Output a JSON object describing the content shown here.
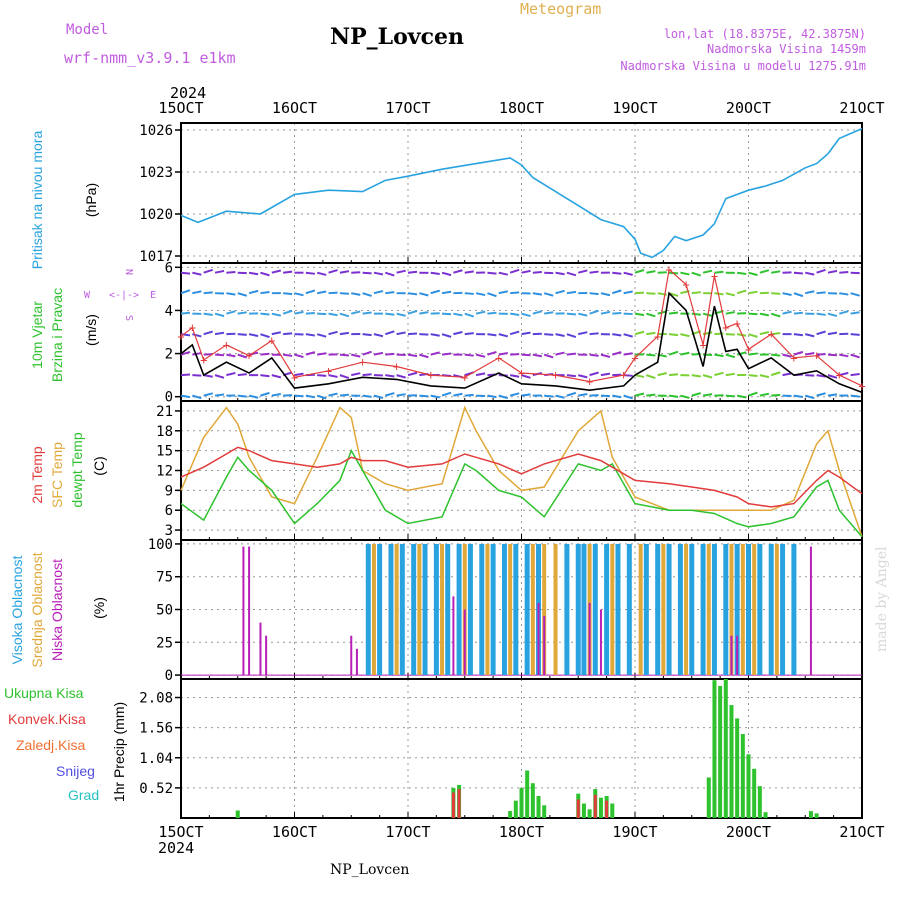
{
  "header": {
    "model_label": "Model",
    "model_name": "wrf-nmm_v3.9.1  e1km",
    "title": "NP_Lovcen",
    "meteogram": "Meteogram",
    "lonlat": "lon,lat (18.8375E, 42.3875N)",
    "height1": "Nadmorska Visina 1459m",
    "height2": "Nadmorska Visina u modelu 1275.91m",
    "year": "2024",
    "footer": "NP_Lovcen",
    "credit": "made by Angel"
  },
  "time_axis": {
    "ticks": [
      "15OCT",
      "16OCT",
      "17OCT",
      "18OCT",
      "19OCT",
      "20OCT",
      "21OCT"
    ],
    "start_day": 15,
    "end_day": 21
  },
  "panel_labels": {
    "pressure": [
      "Pritisak na nivou mora",
      "(hPa)"
    ],
    "wind": [
      "10m Vjetar",
      "Brzina i Pravac",
      "(m/s)"
    ],
    "compass": [
      "N",
      "W",
      "E",
      "S"
    ],
    "temp": [
      "2m Temp",
      "SFC Temp",
      "dewpt Temp",
      "(C)"
    ],
    "cloud": [
      "Visoka Oblacnost",
      "Srednja Oblacnost",
      "Niska Oblacnost",
      "(%)"
    ],
    "precip": [
      "Ukupna Kisa",
      "Konvek.Kisa",
      "Zaledj.Kisa",
      "Snijeg",
      "Grad",
      "1hr Precip (mm)"
    ]
  },
  "colors": {
    "pressure": "#29a3e0",
    "wind_speed": "#000000",
    "gust": "#e23b3b",
    "t2m": "#e23b3b",
    "sfc": "#e0a838",
    "dewpt": "#2ec22e",
    "cloud_high": "#29a3e0",
    "cloud_mid": "#e0a838",
    "cloud_low": "#b81fb8",
    "rain_total": "#2ec22e",
    "rain_conv": "#e23b3b",
    "rain_frz": "#f07030",
    "snow": "#5050e0",
    "hail": "#29c0c0",
    "label_purple": "#c05ce0"
  },
  "chart_data": [
    {
      "type": "line",
      "name": "pressure",
      "ylim": [
        1016.5,
        1026.5
      ],
      "yticks": [
        1017,
        1020,
        1023,
        1026
      ],
      "x": [
        15.0,
        15.15,
        15.4,
        15.7,
        16.0,
        16.3,
        16.6,
        16.8,
        17.0,
        17.3,
        17.6,
        17.9,
        18.0,
        18.1,
        18.3,
        18.5,
        18.7,
        18.9,
        19.0,
        19.05,
        19.15,
        19.25,
        19.35,
        19.45,
        19.6,
        19.7,
        19.8,
        20.0,
        20.15,
        20.3,
        20.5,
        20.6,
        20.7,
        20.8,
        21.0
      ],
      "y": [
        1019.9,
        1019.4,
        1020.2,
        1020.0,
        1021.4,
        1021.7,
        1021.6,
        1022.4,
        1022.7,
        1023.2,
        1023.6,
        1024.0,
        1023.5,
        1022.6,
        1021.6,
        1020.6,
        1019.6,
        1019.1,
        1018.2,
        1017.2,
        1016.9,
        1017.4,
        1018.4,
        1018.1,
        1018.5,
        1019.3,
        1021.1,
        1021.7,
        1022.0,
        1022.4,
        1023.3,
        1023.6,
        1024.3,
        1025.4,
        1026.1
      ]
    },
    {
      "type": "line",
      "name": "wind",
      "ylim": [
        -0.2,
        6.2
      ],
      "yticks": [
        0,
        2,
        4,
        6
      ],
      "x": [
        15.0,
        15.1,
        15.2,
        15.4,
        15.6,
        15.8,
        16.0,
        16.3,
        16.6,
        16.9,
        17.2,
        17.5,
        17.8,
        18.0,
        18.3,
        18.6,
        18.9,
        19.0,
        19.2,
        19.3,
        19.45,
        19.6,
        19.7,
        19.8,
        19.9,
        20.0,
        20.2,
        20.4,
        20.6,
        20.8,
        21.0
      ],
      "y": [
        2.0,
        2.4,
        1.0,
        1.6,
        1.1,
        1.8,
        0.4,
        0.6,
        0.9,
        0.8,
        0.5,
        0.4,
        1.1,
        0.6,
        0.5,
        0.3,
        0.5,
        1.0,
        1.6,
        4.8,
        4.0,
        1.4,
        4.2,
        2.1,
        2.2,
        1.3,
        1.8,
        1.0,
        1.2,
        0.6,
        0.2
      ],
      "gust": [
        2.8,
        3.2,
        1.7,
        2.4,
        1.9,
        2.6,
        0.9,
        1.2,
        1.6,
        1.4,
        1.0,
        0.9,
        1.8,
        1.1,
        1.0,
        0.7,
        1.0,
        1.8,
        2.8,
        5.9,
        5.2,
        2.4,
        5.6,
        3.2,
        3.4,
        2.2,
        2.9,
        1.8,
        1.9,
        1.0,
        0.5
      ]
    },
    {
      "type": "line",
      "name": "temperature",
      "ylim": [
        1.5,
        22.5
      ],
      "yticks": [
        3,
        6,
        9,
        12,
        15,
        18,
        21
      ],
      "x": [
        15.0,
        15.2,
        15.4,
        15.5,
        15.6,
        15.8,
        16.0,
        16.2,
        16.4,
        16.5,
        16.6,
        16.8,
        17.0,
        17.3,
        17.5,
        17.6,
        17.8,
        18.0,
        18.2,
        18.5,
        18.7,
        18.8,
        19.0,
        19.3,
        19.5,
        19.7,
        19.9,
        20.0,
        20.2,
        20.4,
        20.6,
        20.7,
        20.8,
        21.0
      ],
      "t2m": [
        11,
        12.5,
        14.5,
        15.5,
        15,
        13.5,
        13,
        12.5,
        13,
        14,
        13.5,
        13.5,
        12.5,
        13,
        14.5,
        14,
        13,
        11.5,
        13,
        14.5,
        13.5,
        12.5,
        10.5,
        10,
        9.5,
        9,
        8,
        7,
        6.5,
        7,
        10.5,
        12,
        11,
        8.5
      ],
      "sfc": [
        9,
        17,
        21.5,
        19,
        14,
        8,
        7,
        14,
        21.5,
        20,
        12,
        10,
        9,
        10,
        21.5,
        18,
        12,
        9,
        9.5,
        18,
        21,
        14,
        8,
        6,
        6,
        6,
        6,
        6,
        6,
        7.5,
        16,
        18,
        12,
        2
      ],
      "dewpt": [
        7,
        4.5,
        11,
        14,
        12,
        9,
        4,
        7,
        10.5,
        15,
        12,
        6,
        4,
        5,
        13,
        12,
        9,
        8,
        5,
        13,
        12,
        13,
        7,
        6,
        6,
        5.5,
        4,
        3.5,
        4,
        5,
        9.5,
        10.5,
        6,
        2
      ]
    },
    {
      "type": "bar",
      "name": "cloud",
      "ylim": [
        -3,
        103
      ],
      "yticks": [
        0,
        25,
        50,
        75,
        100
      ],
      "series": [
        {
          "name": "Visoka Oblacnost",
          "x": [
            16.65,
            16.75,
            16.85,
            16.95,
            17.05,
            17.15,
            17.25,
            17.35,
            17.45,
            17.55,
            17.65,
            17.75,
            17.85,
            17.95,
            18.05,
            18.15,
            18.4,
            18.5,
            18.55,
            18.65,
            18.75,
            18.85,
            18.95,
            19.1,
            19.2,
            19.3,
            19.4,
            19.5,
            19.6,
            19.7,
            19.8,
            19.9,
            20.0,
            20.1,
            20.2,
            20.3,
            20.4
          ],
          "values": [
            100,
            100,
            100,
            100,
            100,
            100,
            100,
            100,
            100,
            100,
            100,
            100,
            100,
            100,
            100,
            100,
            100,
            100,
            100,
            100,
            100,
            100,
            100,
            100,
            100,
            100,
            100,
            100,
            100,
            100,
            100,
            100,
            100,
            100,
            100,
            100,
            100
          ]
        },
        {
          "name": "Srednja Oblacnost",
          "x": [
            16.7,
            16.9,
            17.1,
            17.3,
            17.5,
            17.7,
            17.9,
            18.1,
            18.2,
            18.3,
            18.6,
            18.8,
            19.05,
            19.25,
            19.45,
            19.65,
            19.85,
            19.95,
            20.05,
            20.25
          ],
          "values": [
            100,
            100,
            100,
            100,
            100,
            100,
            100,
            100,
            100,
            100,
            100,
            100,
            100,
            100,
            100,
            100,
            100,
            100,
            100,
            100
          ]
        },
        {
          "name": "Niska Oblacnost",
          "x": [
            15.55,
            15.6,
            15.7,
            15.75,
            16.5,
            16.55,
            17.4,
            17.5,
            18.15,
            18.2,
            18.6,
            18.7,
            19.85,
            19.9,
            20.55
          ],
          "values": [
            98,
            98,
            40,
            30,
            30,
            20,
            60,
            50,
            55,
            45,
            55,
            50,
            30,
            30,
            98
          ]
        }
      ]
    },
    {
      "type": "bar",
      "name": "precip",
      "ylim": [
        0,
        2.4
      ],
      "yticks": [
        0.52,
        1.04,
        1.56,
        2.08
      ],
      "series": [
        {
          "name": "Ukupna Kisa",
          "x": [
            15.5,
            17.4,
            17.45,
            17.9,
            17.95,
            18.0,
            18.05,
            18.1,
            18.15,
            18.2,
            18.5,
            18.55,
            18.6,
            18.65,
            18.7,
            18.75,
            18.8,
            19.65,
            19.7,
            19.75,
            19.8,
            19.85,
            19.9,
            19.95,
            20.0,
            20.05,
            20.1,
            20.15,
            20.55,
            20.6
          ],
          "values": [
            0.13,
            0.52,
            0.57,
            0.12,
            0.3,
            0.52,
            0.82,
            0.6,
            0.38,
            0.22,
            0.42,
            0.25,
            0.15,
            0.5,
            0.35,
            0.38,
            0.25,
            0.7,
            2.38,
            2.28,
            2.4,
            1.95,
            1.72,
            1.45,
            1.1,
            0.85,
            0.55,
            0.1,
            0.12,
            0.08
          ]
        },
        {
          "name": "Konvek.Kisa",
          "x": [
            17.4,
            17.45,
            18.5,
            18.65,
            18.75
          ],
          "values": [
            0.44,
            0.5,
            0.32,
            0.4,
            0.3
          ]
        }
      ]
    }
  ]
}
